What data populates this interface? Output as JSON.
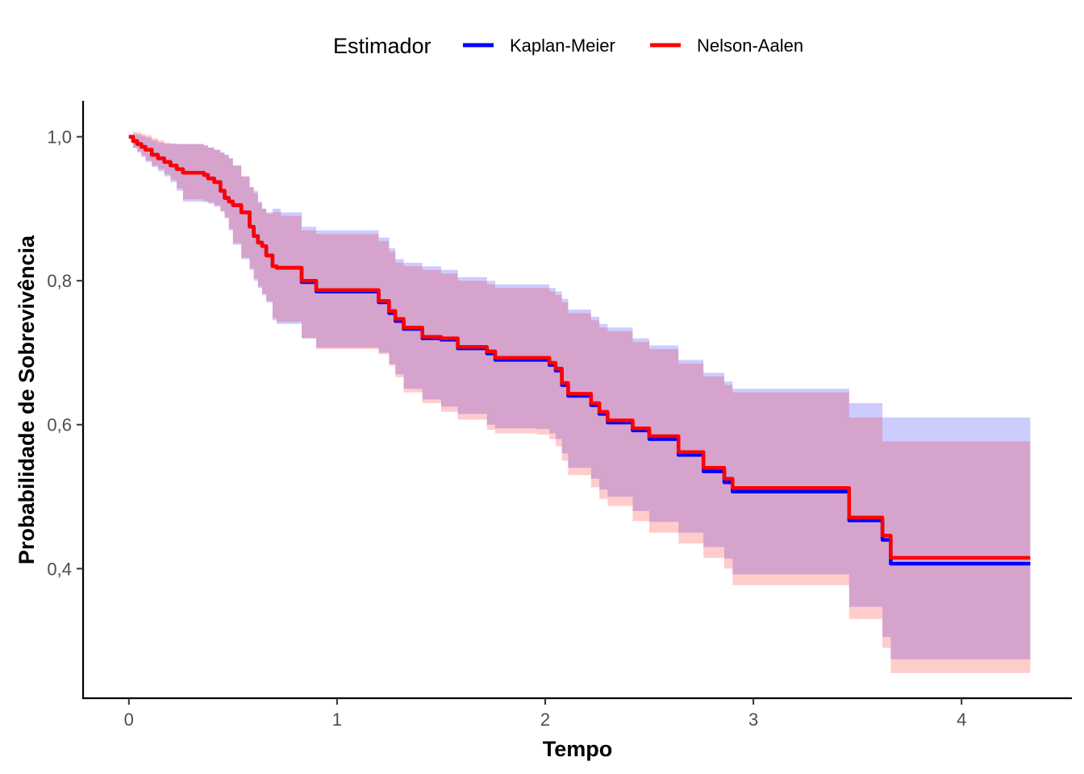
{
  "chart_data": {
    "type": "line",
    "step": true,
    "xlabel": "Tempo",
    "ylabel": "Probabilidade de Sobrevivência",
    "xlim": [
      -0.22,
      4.53
    ],
    "ylim": [
      0.22,
      1.05
    ],
    "x_ticks": [
      0,
      1,
      2,
      3,
      4
    ],
    "x_tick_labels": [
      "0",
      "1",
      "2",
      "3",
      "4"
    ],
    "y_ticks": [
      0.4,
      0.6,
      0.8,
      1.0
    ],
    "y_tick_labels": [
      "0,4",
      "0,6",
      "0,8",
      "1,0"
    ],
    "grid": false,
    "legend": {
      "title": "Estimador",
      "position": "top",
      "entries": [
        "Kaplan-Meier",
        "Nelson-Aalen"
      ]
    },
    "series": [
      {
        "name": "Kaplan-Meier",
        "color": "#0000ff",
        "ribbon_color": "#0000ff",
        "ribbon_opacity": 0.2,
        "x": [
          0,
          0.02,
          0.04,
          0.06,
          0.08,
          0.11,
          0.14,
          0.17,
          0.2,
          0.23,
          0.26,
          0.36,
          0.38,
          0.41,
          0.44,
          0.46,
          0.48,
          0.5,
          0.54,
          0.58,
          0.6,
          0.62,
          0.64,
          0.66,
          0.69,
          0.71,
          0.73,
          0.83,
          0.85,
          0.9,
          1.2,
          1.25,
          1.28,
          1.32,
          1.41,
          1.5,
          1.58,
          1.72,
          1.76,
          1.96,
          2.02,
          2.05,
          2.08,
          2.11,
          2.22,
          2.26,
          2.3,
          2.42,
          2.5,
          2.64,
          2.76,
          2.86,
          2.9,
          3.42,
          3.46,
          3.58,
          3.62,
          3.66,
          4.33
        ],
        "y": [
          1.0,
          0.994,
          0.99,
          0.986,
          0.982,
          0.975,
          0.97,
          0.965,
          0.96,
          0.955,
          0.95,
          0.947,
          0.942,
          0.937,
          0.925,
          0.915,
          0.91,
          0.905,
          0.895,
          0.875,
          0.862,
          0.853,
          0.848,
          0.835,
          0.82,
          0.818,
          0.818,
          0.798,
          0.798,
          0.785,
          0.77,
          0.755,
          0.744,
          0.733,
          0.72,
          0.718,
          0.706,
          0.699,
          0.69,
          0.69,
          0.683,
          0.675,
          0.655,
          0.64,
          0.627,
          0.615,
          0.603,
          0.592,
          0.58,
          0.558,
          0.535,
          0.52,
          0.507,
          0.507,
          0.467,
          0.467,
          0.44,
          0.407,
          0.407
        ],
        "lower": [
          1.0,
          0.984,
          0.978,
          0.972,
          0.965,
          0.958,
          0.952,
          0.945,
          0.937,
          0.925,
          0.91,
          0.909,
          0.907,
          0.903,
          0.896,
          0.887,
          0.87,
          0.85,
          0.83,
          0.815,
          0.8,
          0.79,
          0.78,
          0.77,
          0.745,
          0.74,
          0.74,
          0.72,
          0.72,
          0.707,
          0.7,
          0.684,
          0.67,
          0.65,
          0.635,
          0.625,
          0.615,
          0.6,
          0.595,
          0.594,
          0.588,
          0.58,
          0.56,
          0.54,
          0.525,
          0.51,
          0.5,
          0.48,
          0.465,
          0.45,
          0.43,
          0.414,
          0.392,
          0.392,
          0.347,
          0.347,
          0.305,
          0.274,
          0.274
        ],
        "upper": [
          1.0,
          1.004,
          1.003,
          1.001,
          0.999,
          0.995,
          0.992,
          0.99,
          0.99,
          0.99,
          0.99,
          0.988,
          0.985,
          0.982,
          0.978,
          0.975,
          0.97,
          0.96,
          0.945,
          0.93,
          0.925,
          0.91,
          0.9,
          0.895,
          0.9,
          0.9,
          0.895,
          0.875,
          0.875,
          0.87,
          0.86,
          0.845,
          0.83,
          0.825,
          0.82,
          0.815,
          0.805,
          0.8,
          0.795,
          0.795,
          0.79,
          0.785,
          0.775,
          0.76,
          0.75,
          0.74,
          0.735,
          0.72,
          0.71,
          0.69,
          0.672,
          0.66,
          0.65,
          0.65,
          0.63,
          0.63,
          0.61,
          0.61,
          0.61
        ]
      },
      {
        "name": "Nelson-Aalen",
        "color": "#ff0000",
        "ribbon_color": "#ff0000",
        "ribbon_opacity": 0.2,
        "x": [
          0,
          0.02,
          0.04,
          0.06,
          0.08,
          0.11,
          0.14,
          0.17,
          0.2,
          0.23,
          0.26,
          0.36,
          0.38,
          0.41,
          0.44,
          0.46,
          0.48,
          0.5,
          0.54,
          0.58,
          0.6,
          0.62,
          0.64,
          0.66,
          0.69,
          0.71,
          0.73,
          0.83,
          0.85,
          0.9,
          1.2,
          1.25,
          1.28,
          1.32,
          1.41,
          1.5,
          1.58,
          1.72,
          1.76,
          1.96,
          2.02,
          2.05,
          2.08,
          2.11,
          2.22,
          2.26,
          2.3,
          2.42,
          2.5,
          2.64,
          2.76,
          2.86,
          2.9,
          3.42,
          3.46,
          3.58,
          3.62,
          3.66,
          4.33
        ],
        "y": [
          1.0,
          0.994,
          0.99,
          0.986,
          0.982,
          0.975,
          0.97,
          0.965,
          0.96,
          0.955,
          0.95,
          0.947,
          0.942,
          0.937,
          0.925,
          0.915,
          0.91,
          0.905,
          0.895,
          0.875,
          0.862,
          0.853,
          0.848,
          0.835,
          0.82,
          0.818,
          0.818,
          0.8,
          0.8,
          0.787,
          0.772,
          0.758,
          0.747,
          0.735,
          0.722,
          0.72,
          0.708,
          0.702,
          0.693,
          0.693,
          0.686,
          0.678,
          0.658,
          0.643,
          0.63,
          0.618,
          0.606,
          0.595,
          0.584,
          0.562,
          0.54,
          0.525,
          0.512,
          0.512,
          0.471,
          0.471,
          0.446,
          0.415,
          0.415
        ],
        "lower": [
          1.0,
          0.985,
          0.98,
          0.974,
          0.967,
          0.96,
          0.955,
          0.948,
          0.94,
          0.928,
          0.913,
          0.911,
          0.909,
          0.905,
          0.897,
          0.888,
          0.872,
          0.852,
          0.832,
          0.817,
          0.803,
          0.792,
          0.782,
          0.772,
          0.748,
          0.743,
          0.743,
          0.72,
          0.72,
          0.705,
          0.698,
          0.682,
          0.666,
          0.645,
          0.63,
          0.618,
          0.607,
          0.593,
          0.588,
          0.586,
          0.58,
          0.57,
          0.55,
          0.53,
          0.513,
          0.497,
          0.487,
          0.466,
          0.45,
          0.435,
          0.415,
          0.4,
          0.377,
          0.377,
          0.33,
          0.33,
          0.29,
          0.255,
          0.255
        ],
        "upper": [
          1.0,
          1.007,
          1.006,
          1.004,
          1.002,
          0.998,
          0.995,
          0.992,
          0.991,
          0.99,
          0.99,
          0.988,
          0.985,
          0.982,
          0.978,
          0.975,
          0.97,
          0.96,
          0.945,
          0.93,
          0.922,
          0.908,
          0.9,
          0.893,
          0.895,
          0.895,
          0.89,
          0.87,
          0.87,
          0.865,
          0.855,
          0.84,
          0.825,
          0.82,
          0.815,
          0.81,
          0.8,
          0.795,
          0.79,
          0.79,
          0.785,
          0.78,
          0.77,
          0.755,
          0.745,
          0.735,
          0.73,
          0.715,
          0.705,
          0.685,
          0.667,
          0.655,
          0.645,
          0.645,
          0.61,
          0.61,
          0.577,
          0.577,
          0.577
        ]
      }
    ]
  }
}
